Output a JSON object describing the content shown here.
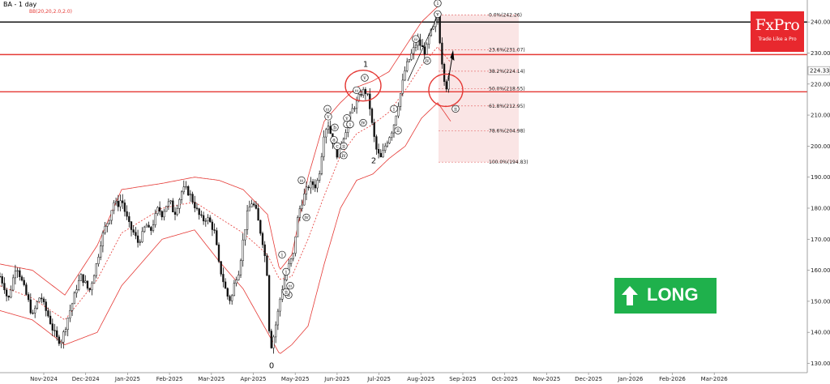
{
  "header": {
    "title": "BA - 1 day",
    "indicator": "BB(20,20,2.0,2.0)"
  },
  "brand": {
    "name": "FxPro",
    "tagline": "Trade Like a Pro",
    "color": "#e8282e"
  },
  "signal": {
    "label": "LONG",
    "color": "#1fb14c",
    "icon": "up-arrow-icon"
  },
  "colors": {
    "candle": "#111111",
    "band": "#e53935",
    "level": "#e53935",
    "fib_zone": "#f5d0d0",
    "circle": "#e53935"
  },
  "chart_data": {
    "type": "candlestick",
    "symbol": "BA",
    "timeframe": "1 day",
    "ylim": [
      127,
      245
    ],
    "y_ticks": [
      130,
      140,
      150,
      160,
      170,
      180,
      190,
      200,
      210,
      220,
      230,
      240
    ],
    "x_ticks": [
      "Nov-2024",
      "Dec-2024",
      "Jan-2025",
      "Feb-2025",
      "Mar-2025",
      "Apr-2025",
      "May-2025",
      "Jun-2025",
      "Jul-2025",
      "Aug-2025",
      "Sep-2025",
      "Oct-2025",
      "Nov-2025",
      "Dec-2025",
      "Jan-2026",
      "Feb-2026",
      "Mar-2026"
    ],
    "current_price": "224.33",
    "horizontal_levels": [
      {
        "value": 240,
        "color": "#000000"
      },
      {
        "value": 229.5,
        "color": "#e53935"
      },
      {
        "value": 217.5,
        "color": "#e53935"
      }
    ],
    "fib_retracement": [
      {
        "label": "0.0%(242.26)",
        "value": 242.26
      },
      {
        "label": "23.6%(231.07)",
        "value": 231.07
      },
      {
        "label": "38.2%(224.14)",
        "value": 224.14
      },
      {
        "label": "50.0%(218.55)",
        "value": 218.55
      },
      {
        "label": "61.8%(212.95)",
        "value": 212.95
      },
      {
        "label": "78.6%(204.98)",
        "value": 204.98
      },
      {
        "label": "100.0%(194.83)",
        "value": 194.83
      }
    ],
    "price_path": [
      [
        0,
        158
      ],
      [
        5,
        155
      ],
      [
        10,
        150
      ],
      [
        15,
        156
      ],
      [
        20,
        162
      ],
      [
        25,
        158
      ],
      [
        30,
        154
      ],
      [
        35,
        150
      ],
      [
        40,
        145
      ],
      [
        45,
        149
      ],
      [
        50,
        152
      ],
      [
        55,
        148
      ],
      [
        60,
        145
      ],
      [
        65,
        141
      ],
      [
        70,
        138
      ],
      [
        75,
        137
      ],
      [
        80,
        141
      ],
      [
        85,
        146
      ],
      [
        90,
        150
      ],
      [
        95,
        155
      ],
      [
        100,
        158
      ],
      [
        105,
        156
      ],
      [
        110,
        153
      ],
      [
        115,
        158
      ],
      [
        120,
        163
      ],
      [
        125,
        170
      ],
      [
        130,
        174
      ],
      [
        135,
        177
      ],
      [
        140,
        182
      ],
      [
        145,
        181
      ],
      [
        150,
        183
      ],
      [
        155,
        178
      ],
      [
        160,
        174
      ],
      [
        165,
        172
      ],
      [
        170,
        169
      ],
      [
        175,
        171
      ],
      [
        180,
        175
      ],
      [
        185,
        172
      ],
      [
        190,
        176
      ],
      [
        195,
        180
      ],
      [
        200,
        178
      ],
      [
        205,
        181
      ],
      [
        210,
        182
      ],
      [
        215,
        178
      ],
      [
        220,
        182
      ],
      [
        225,
        186
      ],
      [
        230,
        186
      ],
      [
        235,
        184
      ],
      [
        240,
        181
      ],
      [
        245,
        178
      ],
      [
        250,
        176
      ],
      [
        255,
        177
      ],
      [
        260,
        175
      ],
      [
        265,
        172
      ],
      [
        270,
        162
      ],
      [
        275,
        157
      ],
      [
        280,
        152
      ],
      [
        285,
        150
      ],
      [
        290,
        157
      ],
      [
        295,
        160
      ],
      [
        300,
        170
      ],
      [
        305,
        178
      ],
      [
        310,
        182
      ],
      [
        315,
        180
      ],
      [
        320,
        174
      ],
      [
        325,
        168
      ],
      [
        330,
        158
      ],
      [
        333,
        134
      ],
      [
        337,
        138
      ],
      [
        342,
        145
      ],
      [
        347,
        153
      ],
      [
        352,
        158
      ],
      [
        357,
        162
      ],
      [
        362,
        165
      ],
      [
        366,
        175
      ],
      [
        370,
        180
      ],
      [
        375,
        184
      ],
      [
        380,
        187
      ],
      [
        385,
        188
      ],
      [
        390,
        187
      ],
      [
        395,
        193
      ],
      [
        400,
        205
      ],
      [
        405,
        207
      ],
      [
        410,
        202
      ],
      [
        415,
        197
      ],
      [
        420,
        200
      ],
      [
        425,
        204
      ],
      [
        430,
        208
      ],
      [
        435,
        212
      ],
      [
        440,
        214
      ],
      [
        445,
        217
      ],
      [
        450,
        218
      ],
      [
        455,
        215
      ],
      [
        460,
        205
      ],
      [
        465,
        198
      ],
      [
        470,
        196
      ],
      [
        475,
        200
      ],
      [
        480,
        203
      ],
      [
        485,
        206
      ],
      [
        490,
        212
      ],
      [
        495,
        218
      ],
      [
        500,
        225
      ],
      [
        505,
        228
      ],
      [
        510,
        231
      ],
      [
        515,
        234
      ],
      [
        520,
        232
      ],
      [
        525,
        230
      ],
      [
        530,
        236
      ],
      [
        535,
        238
      ],
      [
        540,
        242
      ],
      [
        542,
        236
      ],
      [
        545,
        228
      ],
      [
        548,
        222
      ],
      [
        551,
        219
      ],
      [
        553,
        221
      ],
      [
        556,
        224
      ]
    ],
    "bb_upper": [
      [
        0,
        162
      ],
      [
        40,
        160
      ],
      [
        80,
        152
      ],
      [
        120,
        168
      ],
      [
        150,
        186
      ],
      [
        200,
        188
      ],
      [
        240,
        190
      ],
      [
        270,
        189
      ],
      [
        300,
        186
      ],
      [
        330,
        178
      ],
      [
        345,
        160
      ],
      [
        360,
        165
      ],
      [
        380,
        190
      ],
      [
        400,
        208
      ],
      [
        420,
        214
      ],
      [
        440,
        219
      ],
      [
        460,
        221
      ],
      [
        480,
        224
      ],
      [
        500,
        232
      ],
      [
        520,
        240
      ],
      [
        540,
        245
      ]
    ],
    "bb_middle": [
      [
        0,
        155
      ],
      [
        40,
        151
      ],
      [
        80,
        144
      ],
      [
        120,
        157
      ],
      [
        150,
        172
      ],
      [
        200,
        180
      ],
      [
        240,
        182
      ],
      [
        270,
        177
      ],
      [
        300,
        172
      ],
      [
        330,
        165
      ],
      [
        345,
        157
      ],
      [
        360,
        158
      ],
      [
        380,
        170
      ],
      [
        400,
        184
      ],
      [
        420,
        197
      ],
      [
        440,
        204
      ],
      [
        460,
        207
      ],
      [
        480,
        211
      ],
      [
        500,
        218
      ],
      [
        520,
        226
      ],
      [
        540,
        232
      ],
      [
        556,
        227
      ]
    ],
    "bb_lower": [
      [
        0,
        147
      ],
      [
        40,
        144
      ],
      [
        80,
        136
      ],
      [
        120,
        140
      ],
      [
        150,
        155
      ],
      [
        200,
        170
      ],
      [
        240,
        173
      ],
      [
        270,
        163
      ],
      [
        300,
        154
      ],
      [
        330,
        140
      ],
      [
        345,
        133
      ],
      [
        360,
        136
      ],
      [
        380,
        142
      ],
      [
        400,
        162
      ],
      [
        420,
        180
      ],
      [
        440,
        189
      ],
      [
        460,
        191
      ],
      [
        480,
        196
      ],
      [
        500,
        200
      ],
      [
        520,
        209
      ],
      [
        540,
        214
      ],
      [
        556,
        208
      ]
    ],
    "annotations": [
      {
        "text": "0",
        "t": 335,
        "price": 128.5,
        "style": "plain"
      },
      {
        "text": "1",
        "t": 451,
        "price": 225.5,
        "style": "plain"
      },
      {
        "text": "2",
        "t": 461,
        "price": 194.5,
        "style": "plain"
      },
      {
        "text": "i",
        "t": 540,
        "price": 245.5,
        "style": "circle"
      },
      {
        "text": "ii",
        "t": 562,
        "price": 211.5,
        "style": "circle"
      },
      {
        "text": "v",
        "t": 450,
        "price": 221.5,
        "style": "circle"
      },
      {
        "text": "v",
        "t": 540,
        "price": 242,
        "style": "circle"
      },
      {
        "text": "iii",
        "t": 440,
        "price": 217.5,
        "style": "circle"
      },
      {
        "text": "iii",
        "t": 404,
        "price": 211.5,
        "style": "circle"
      },
      {
        "text": "iii",
        "t": 513,
        "price": 234,
        "style": "circle"
      },
      {
        "text": "iii",
        "t": 372,
        "price": 188.5,
        "style": "circle"
      },
      {
        "text": "iii",
        "t": 358,
        "price": 154.5,
        "style": "circle"
      },
      {
        "text": "iv",
        "t": 448,
        "price": 207,
        "style": "circle"
      },
      {
        "text": "iv",
        "t": 527,
        "price": 227,
        "style": "circle"
      },
      {
        "text": "iv",
        "t": 424,
        "price": 196.5,
        "style": "circle"
      },
      {
        "text": "iv",
        "t": 378,
        "price": 176.5,
        "style": "circle"
      },
      {
        "text": "v",
        "t": 405,
        "price": 209,
        "style": "circle"
      },
      {
        "text": "v",
        "t": 428,
        "price": 208.5,
        "style": "circle"
      },
      {
        "text": "i",
        "t": 486,
        "price": 211.5,
        "style": "circle"
      },
      {
        "text": "ii",
        "t": 491,
        "price": 204.5,
        "style": "circle"
      },
      {
        "text": "i",
        "t": 428,
        "price": 206.5,
        "style": "circle"
      },
      {
        "text": "ii",
        "t": 424,
        "price": 199.5,
        "style": "circle"
      },
      {
        "text": "a",
        "t": 412,
        "price": 201.5,
        "style": "circle"
      },
      {
        "text": "b",
        "t": 413,
        "price": 205.5,
        "style": "circle"
      },
      {
        "text": "c",
        "t": 416,
        "price": 199.5,
        "style": "circle"
      },
      {
        "text": "i",
        "t": 348,
        "price": 164.5,
        "style": "circle"
      },
      {
        "text": "ii",
        "t": 356,
        "price": 151.5,
        "style": "circle"
      },
      {
        "text": "i",
        "t": 353,
        "price": 159,
        "style": "circle"
      },
      {
        "text": "ii",
        "t": 353,
        "price": 152.5,
        "style": "circle"
      },
      {
        "text": "i",
        "t": 432,
        "price": 206.5,
        "style": "circle"
      }
    ]
  }
}
